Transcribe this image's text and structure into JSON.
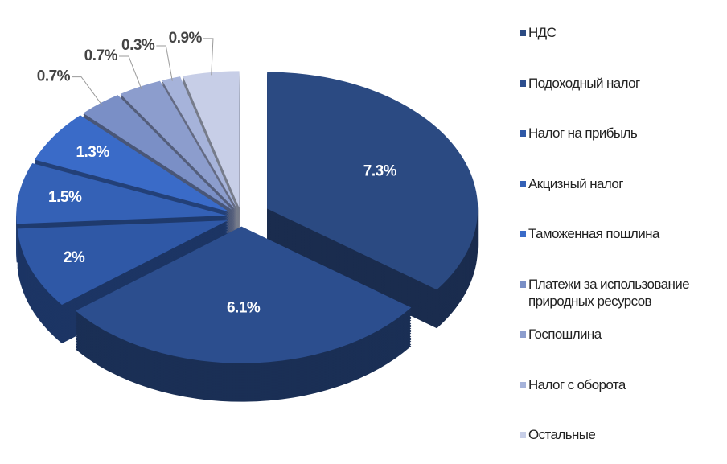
{
  "chart_data": {
    "type": "pie",
    "categories": [
      "НДС",
      "Подоходный налог",
      "Налог на прибыль",
      "Акцизный налог",
      "Таможенная пошлина",
      "Платежи за использование природных ресурсов",
      "Госпошлина",
      "Налог с оборота",
      "Остальные"
    ],
    "values": [
      7.3,
      6.1,
      2,
      1.5,
      1.3,
      0.7,
      0.7,
      0.3,
      0.9
    ],
    "value_labels": [
      "7.3%",
      "6.1%",
      "2%",
      "1.5%",
      "1.3%",
      "0.7%",
      "0.7%",
      "0.3%",
      "0.9%"
    ],
    "colors": [
      "#2b4a82",
      "#2c4e8e",
      "#2f58a6",
      "#3461b6",
      "#3a6bc8",
      "#7a8fc6",
      "#8c9dcd",
      "#a6b3da",
      "#c7cee7"
    ],
    "legend": "right"
  }
}
